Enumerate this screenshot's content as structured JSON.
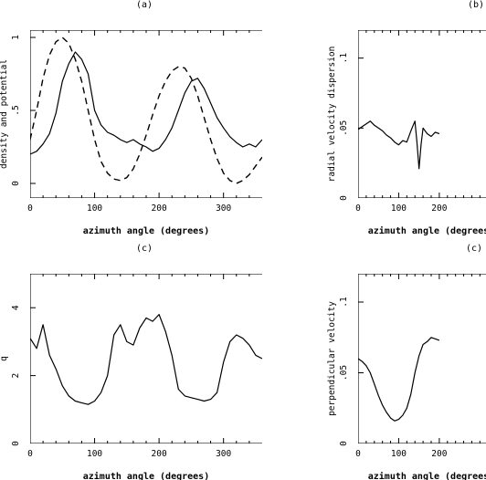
{
  "chart_data": [
    {
      "type": "line",
      "title": "(a)",
      "xlabel": "azimuth angle (degrees)",
      "ylabel": "density and potential",
      "xlim": [
        0,
        360
      ],
      "ylim": [
        -0.1,
        1.05
      ],
      "xticks": [
        0,
        100,
        200,
        300
      ],
      "yticks": [
        0,
        0.5,
        1
      ],
      "grid": false,
      "series": [
        {
          "style": "solid",
          "x": [
            0,
            10,
            20,
            30,
            40,
            50,
            60,
            70,
            80,
            90,
            100,
            110,
            120,
            130,
            140,
            150,
            160,
            170,
            180,
            190,
            200,
            210,
            220,
            230,
            240,
            250,
            260,
            270,
            280,
            290,
            300,
            310,
            320,
            330,
            340,
            350,
            360
          ],
          "y": [
            0.2,
            0.22,
            0.27,
            0.34,
            0.48,
            0.7,
            0.82,
            0.9,
            0.85,
            0.75,
            0.5,
            0.4,
            0.35,
            0.33,
            0.3,
            0.28,
            0.3,
            0.27,
            0.25,
            0.22,
            0.24,
            0.3,
            0.38,
            0.5,
            0.62,
            0.7,
            0.72,
            0.65,
            0.55,
            0.45,
            0.38,
            0.32,
            0.28,
            0.25,
            0.27,
            0.25,
            0.3
          ]
        },
        {
          "style": "dashed",
          "x": [
            0,
            10,
            20,
            30,
            40,
            50,
            60,
            70,
            80,
            90,
            100,
            110,
            120,
            130,
            140,
            150,
            160,
            170,
            180,
            190,
            200,
            210,
            220,
            230,
            240,
            250,
            260,
            270,
            280,
            290,
            300,
            310,
            320,
            330,
            340,
            350,
            360
          ],
          "y": [
            0.3,
            0.5,
            0.72,
            0.88,
            0.97,
            1.0,
            0.96,
            0.85,
            0.7,
            0.5,
            0.3,
            0.15,
            0.07,
            0.03,
            0.02,
            0.04,
            0.1,
            0.2,
            0.33,
            0.47,
            0.6,
            0.7,
            0.77,
            0.8,
            0.79,
            0.72,
            0.6,
            0.45,
            0.3,
            0.17,
            0.07,
            0.02,
            0.0,
            0.02,
            0.06,
            0.12,
            0.18
          ]
        }
      ]
    },
    {
      "type": "line",
      "title": "(b)",
      "xlabel": "azimuth angle (degrees)",
      "ylabel": "radial velocity dispersion",
      "xlim": [
        0,
        360
      ],
      "ylim": [
        0,
        0.12
      ],
      "xticks": [
        0,
        100,
        200
      ],
      "yticks": [
        0,
        0.05,
        0.1
      ],
      "grid": false,
      "series": [
        {
          "style": "solid",
          "x": [
            0,
            10,
            20,
            30,
            40,
            50,
            60,
            70,
            80,
            90,
            100,
            110,
            120,
            130,
            140,
            145,
            150,
            155,
            160,
            170,
            180,
            190,
            200
          ],
          "y": [
            0.049,
            0.051,
            0.053,
            0.055,
            0.052,
            0.05,
            0.048,
            0.045,
            0.043,
            0.04,
            0.038,
            0.041,
            0.04,
            0.048,
            0.055,
            0.04,
            0.021,
            0.038,
            0.05,
            0.046,
            0.044,
            0.047,
            0.046
          ]
        }
      ]
    },
    {
      "type": "line",
      "title": "(c)",
      "xlabel": "azimuth angle (degrees)",
      "ylabel": "q",
      "xlim": [
        0,
        360
      ],
      "ylim": [
        0,
        5
      ],
      "xticks": [
        0,
        100,
        200,
        300
      ],
      "yticks": [
        0,
        2,
        4
      ],
      "grid": false,
      "series": [
        {
          "style": "solid",
          "x": [
            0,
            10,
            20,
            30,
            40,
            50,
            60,
            70,
            80,
            90,
            100,
            110,
            120,
            130,
            140,
            150,
            160,
            170,
            180,
            190,
            200,
            210,
            220,
            230,
            240,
            250,
            260,
            270,
            280,
            290,
            300,
            310,
            320,
            330,
            340,
            350,
            360
          ],
          "y": [
            3.1,
            2.8,
            3.5,
            2.6,
            2.2,
            1.7,
            1.4,
            1.25,
            1.2,
            1.15,
            1.25,
            1.5,
            2.0,
            3.2,
            3.5,
            3.0,
            2.9,
            3.4,
            3.7,
            3.6,
            3.8,
            3.3,
            2.6,
            1.6,
            1.4,
            1.35,
            1.3,
            1.25,
            1.3,
            1.5,
            2.4,
            3.0,
            3.2,
            3.1,
            2.9,
            2.6,
            2.5
          ]
        }
      ]
    },
    {
      "type": "line",
      "title": "(c)",
      "xlabel": "azimuth angle (degrees)",
      "ylabel": "perpendicular velocity",
      "xlim": [
        0,
        360
      ],
      "ylim": [
        0,
        0.12
      ],
      "xticks": [
        0,
        100,
        200
      ],
      "yticks": [
        0,
        0.05,
        0.1
      ],
      "grid": false,
      "series": [
        {
          "style": "solid",
          "x": [
            0,
            10,
            20,
            30,
            40,
            50,
            60,
            70,
            80,
            90,
            100,
            110,
            120,
            130,
            140,
            150,
            160,
            170,
            180,
            190,
            200
          ],
          "y": [
            0.06,
            0.058,
            0.055,
            0.05,
            0.042,
            0.034,
            0.027,
            0.022,
            0.018,
            0.016,
            0.017,
            0.02,
            0.025,
            0.035,
            0.05,
            0.062,
            0.07,
            0.072,
            0.075,
            0.074,
            0.073
          ]
        }
      ]
    }
  ]
}
